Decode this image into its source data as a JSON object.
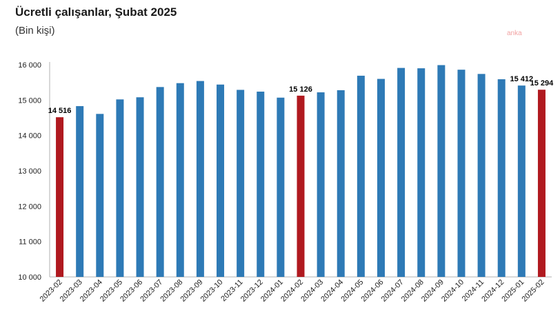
{
  "title": "Ücretli çalışanlar, Şubat 2025",
  "subtitle": "(Bin kişi)",
  "watermark": "anka",
  "colors": {
    "regular": "#2e7ab6",
    "highlight": "#b0191f",
    "axis": "#b0b0b0"
  },
  "chart_data": {
    "type": "bar",
    "title": "Ücretli çalışanlar, Şubat 2025",
    "subtitle": "(Bin kişi)",
    "xlabel": "",
    "ylabel": "",
    "ylim": [
      10000,
      16000
    ],
    "yticks": [
      10000,
      11000,
      12000,
      13000,
      14000,
      15000,
      16000
    ],
    "ytick_labels": [
      "10 000",
      "11 000",
      "12 000",
      "13 000",
      "14 000",
      "15 000",
      "16 000"
    ],
    "grid": false,
    "categories": [
      "2023-02",
      "2023-03",
      "2023-04",
      "2023-05",
      "2023-06",
      "2023-07",
      "2023-08",
      "2023-09",
      "2023-10",
      "2023-11",
      "2023-12",
      "2024-01",
      "2024-02",
      "2024-03",
      "2024-04",
      "2024-05",
      "2024-06",
      "2024-07",
      "2024-08",
      "2024-09",
      "2024-10",
      "2024-11",
      "2024-12",
      "2025-01",
      "2025-02"
    ],
    "values": [
      14516,
      14830,
      14610,
      15020,
      15080,
      15370,
      15480,
      15540,
      15440,
      15290,
      15240,
      15070,
      15126,
      15220,
      15280,
      15690,
      15600,
      15910,
      15900,
      15990,
      15860,
      15740,
      15590,
      15412,
      15294
    ],
    "highlighted": [
      "2023-02",
      "2024-02",
      "2025-02"
    ],
    "data_labels": [
      {
        "category": "2023-02",
        "text": "14 516"
      },
      {
        "category": "2024-02",
        "text": "15 126"
      },
      {
        "category": "2025-01",
        "text": "15 412"
      },
      {
        "category": "2025-02",
        "text": "15 294"
      }
    ]
  }
}
